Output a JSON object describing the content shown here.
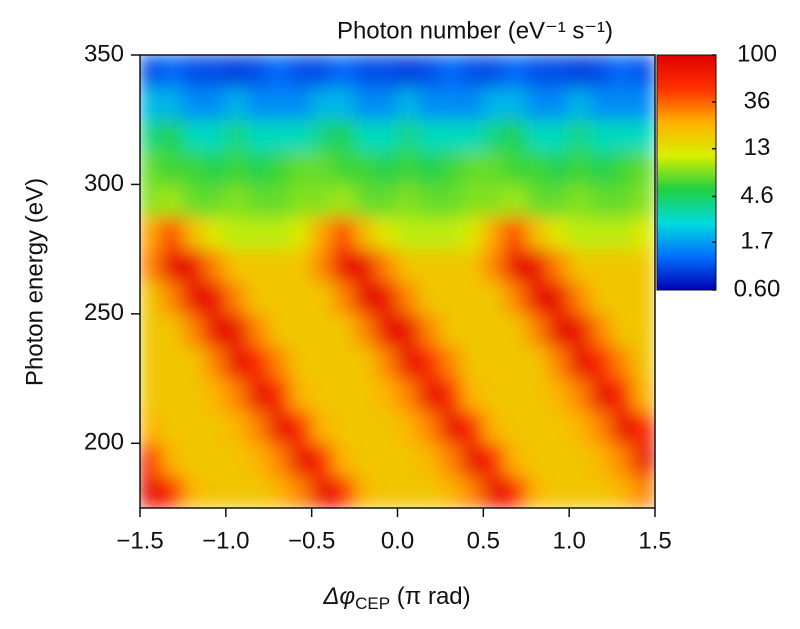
{
  "chart_data": {
    "type": "heatmap",
    "title": "Photon number (eV⁻¹ s⁻¹)",
    "xlabel": [
      "Δφ",
      "CEP",
      " (π rad)"
    ],
    "ylabel": "Photon energy (eV)",
    "x": [
      -1.4375,
      -1.3125,
      -1.1875,
      -1.0625,
      -0.9375,
      -0.8125,
      -0.6875,
      -0.5625,
      -0.4375,
      -0.3125,
      -0.1875,
      -0.0625,
      0.0625,
      0.1875,
      0.3125,
      0.4375,
      0.5625,
      0.6875,
      0.8125,
      0.9375,
      1.0625,
      1.1875,
      1.3125,
      1.4375
    ],
    "y": [
      181.25,
      193.75,
      206.25,
      218.75,
      231.25,
      243.75,
      256.25,
      268.75,
      281.25,
      293.75,
      306.25,
      318.75,
      331.25,
      343.75
    ],
    "z": [
      [
        85,
        55,
        22,
        18,
        18,
        18,
        22,
        30,
        85,
        55,
        22,
        18,
        18,
        18,
        22,
        30,
        85,
        55,
        22,
        18,
        18,
        18,
        22,
        30
      ],
      [
        55,
        22,
        18,
        18,
        18,
        22,
        30,
        85,
        55,
        22,
        18,
        18,
        18,
        22,
        30,
        85,
        55,
        22,
        18,
        18,
        18,
        22,
        30,
        85
      ],
      [
        22,
        18,
        18,
        18,
        22,
        30,
        85,
        55,
        22,
        18,
        18,
        18,
        22,
        30,
        85,
        55,
        22,
        18,
        18,
        18,
        22,
        30,
        85,
        55
      ],
      [
        18,
        18,
        18,
        22,
        30,
        85,
        55,
        22,
        18,
        18,
        18,
        22,
        30,
        85,
        55,
        22,
        18,
        18,
        18,
        22,
        30,
        85,
        55,
        22
      ],
      [
        18,
        18,
        18,
        30,
        85,
        55,
        30,
        18,
        18,
        18,
        18,
        30,
        85,
        55,
        30,
        18,
        18,
        18,
        18,
        30,
        85,
        55,
        30,
        18
      ],
      [
        18,
        18,
        30,
        85,
        85,
        30,
        18,
        18,
        18,
        18,
        30,
        85,
        85,
        30,
        18,
        18,
        18,
        18,
        30,
        85,
        85,
        30,
        18,
        18
      ],
      [
        18,
        30,
        85,
        85,
        30,
        18,
        18,
        18,
        18,
        30,
        85,
        85,
        30,
        18,
        18,
        18,
        18,
        30,
        85,
        85,
        30,
        18,
        18,
        18
      ],
      [
        30,
        85,
        85,
        30,
        18,
        18,
        18,
        18,
        30,
        85,
        85,
        30,
        18,
        18,
        18,
        18,
        30,
        85,
        85,
        30,
        18,
        18,
        18,
        18
      ],
      [
        25,
        45,
        20,
        12,
        10,
        10,
        10,
        12,
        25,
        45,
        20,
        12,
        10,
        10,
        10,
        12,
        25,
        45,
        20,
        12,
        10,
        10,
        10,
        12
      ],
      [
        8,
        9,
        7,
        7,
        8,
        7,
        7,
        8,
        8,
        9,
        7,
        7,
        8,
        7,
        7,
        8,
        8,
        9,
        7,
        7,
        8,
        7,
        7,
        8
      ],
      [
        7,
        6,
        6,
        5,
        6,
        5,
        6,
        7,
        7,
        6,
        6,
        5,
        6,
        5,
        6,
        7,
        7,
        6,
        6,
        5,
        6,
        5,
        6,
        7
      ],
      [
        4,
        5,
        3,
        3,
        4,
        3,
        3,
        3,
        4,
        5,
        3,
        3,
        4,
        3,
        3,
        3,
        4,
        5,
        3,
        3,
        4,
        3,
        3,
        3
      ],
      [
        2,
        2,
        1.5,
        1.5,
        2,
        1.5,
        1.5,
        1.5,
        2,
        2,
        1.5,
        1.5,
        2,
        1.5,
        1.5,
        1.5,
        2,
        2,
        1.5,
        1.5,
        2,
        1.5,
        1.5,
        1.5
      ],
      [
        1,
        1.2,
        1,
        1,
        0.9,
        1,
        1.2,
        1,
        1,
        1.2,
        1,
        1,
        0.9,
        1,
        1.2,
        1,
        1,
        1.2,
        1,
        1,
        0.9,
        1,
        1.2,
        1
      ]
    ],
    "xlim": [
      -1.5,
      1.5
    ],
    "xticks": [
      {
        "value": -1.5,
        "label": "−1.5"
      },
      {
        "value": -1,
        "label": "−1.0"
      },
      {
        "value": -0.5,
        "label": "−0.5"
      },
      {
        "value": 0,
        "label": "0.0"
      },
      0.5,
      {
        "value": 1,
        "label": "1.0"
      },
      1.5
    ],
    "ylim": [
      175,
      350
    ],
    "yticks": [
      200,
      250,
      300,
      350
    ],
    "clim": [
      0.6,
      100
    ],
    "color_log_scale": true,
    "cticks": [
      100,
      36,
      13,
      4.6,
      1.7,
      {
        "value": 0.6,
        "label": "0.60"
      }
    ],
    "colorscale": [
      "#0000b4",
      "#0070ff",
      "#00dcdc",
      "#20d040",
      "#d8f000",
      "#ffb000",
      "#ff3000",
      "#e00000"
    ]
  }
}
